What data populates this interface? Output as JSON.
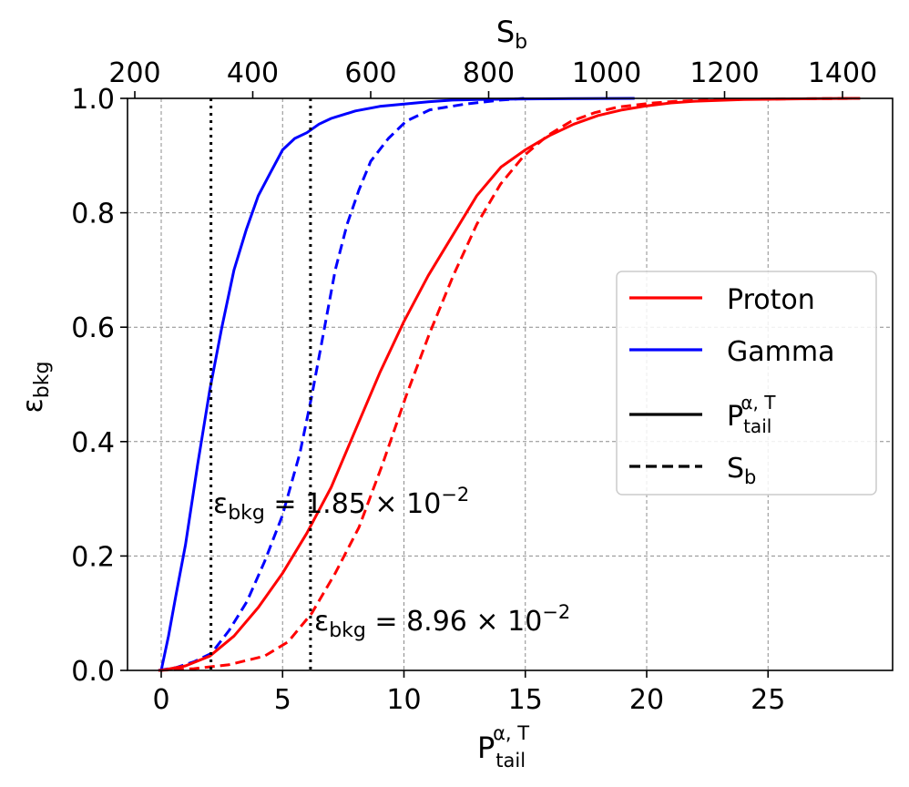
{
  "chart_data": {
    "type": "line",
    "ylabel": {
      "base": "ε",
      "sub": "bkg"
    },
    "xlabel": {
      "base": "P",
      "sub": "tail",
      "sup": "α, T"
    },
    "top_xlabel": {
      "base": "S",
      "sub": "b"
    },
    "xlim": [
      -1.5,
      30
    ],
    "ylim": [
      0.0,
      1.0
    ],
    "top_xlim": [
      200,
      1500
    ],
    "x_ticks": [
      "0",
      "5",
      "10",
      "15",
      "20",
      "25"
    ],
    "x_tick_values": [
      0,
      5,
      10,
      15,
      20,
      25
    ],
    "y_ticks": [
      "0.0",
      "0.2",
      "0.4",
      "0.6",
      "0.8",
      "1.0"
    ],
    "y_tick_values": [
      0.0,
      0.2,
      0.4,
      0.6,
      0.8,
      1.0
    ],
    "top_x_ticks": [
      "200",
      "400",
      "600",
      "800",
      "1000",
      "1200",
      "1400"
    ],
    "top_x_tick_values": [
      200,
      400,
      600,
      800,
      1000,
      1200,
      1400
    ],
    "grid": true,
    "legend_position": "center-right",
    "legend": [
      {
        "label": "Proton",
        "color": "#ff0000",
        "style": "solid"
      },
      {
        "label": "Gamma",
        "color": "#0000ff",
        "style": "solid"
      },
      {
        "label": "P",
        "sub": "tail",
        "sup": "α, T",
        "color": "#000000",
        "style": "solid"
      },
      {
        "label": "S",
        "sub": "b",
        "color": "#000000",
        "style": "dashed"
      }
    ],
    "series": [
      {
        "name": "Gamma P_tail",
        "axis": "bottom",
        "color": "#0000ff",
        "style": "solid",
        "x": [
          0,
          0.3,
          0.6,
          1.0,
          1.5,
          2.0,
          2.5,
          3.0,
          3.5,
          4.0,
          4.5,
          5.0,
          5.5,
          6.0,
          6.5,
          7.0,
          8.0,
          9.0,
          10.0,
          11.0,
          12.0,
          13.0,
          15.0,
          17.0,
          19.5
        ],
        "y": [
          0.0,
          0.06,
          0.13,
          0.22,
          0.36,
          0.49,
          0.6,
          0.7,
          0.77,
          0.83,
          0.87,
          0.91,
          0.93,
          0.94,
          0.955,
          0.965,
          0.978,
          0.986,
          0.99,
          0.994,
          0.997,
          0.998,
          0.999,
          0.9995,
          1.0
        ]
      },
      {
        "name": "Gamma S_b",
        "axis": "top",
        "color": "#0000ff",
        "style": "dashed",
        "x": [
          240,
          270,
          300,
          330,
          360,
          390,
          420,
          450,
          480,
          500,
          520,
          540,
          560,
          580,
          600,
          630,
          660,
          700,
          760,
          820,
          860
        ],
        "y": [
          0.0,
          0.005,
          0.015,
          0.03,
          0.07,
          0.12,
          0.19,
          0.27,
          0.38,
          0.48,
          0.59,
          0.7,
          0.78,
          0.84,
          0.89,
          0.93,
          0.96,
          0.98,
          0.99,
          0.997,
          1.0
        ]
      },
      {
        "name": "Proton P_tail",
        "axis": "bottom",
        "color": "#ff0000",
        "style": "solid",
        "x": [
          0,
          1.0,
          2.0,
          3.0,
          4.0,
          5.0,
          6.0,
          7.0,
          8.0,
          9.0,
          10.0,
          11.0,
          12.0,
          13.0,
          14.0,
          15.0,
          16.0,
          17.0,
          18.0,
          19.0,
          20.0,
          21.0,
          22.0,
          24.0,
          26.0,
          28.5
        ],
        "y": [
          0.0,
          0.008,
          0.025,
          0.06,
          0.11,
          0.17,
          0.24,
          0.32,
          0.42,
          0.52,
          0.61,
          0.69,
          0.76,
          0.83,
          0.88,
          0.91,
          0.935,
          0.955,
          0.97,
          0.98,
          0.987,
          0.992,
          0.995,
          0.998,
          0.999,
          1.0
        ]
      },
      {
        "name": "Proton S_b",
        "axis": "top",
        "color": "#ff0000",
        "style": "dashed",
        "x": [
          240,
          300,
          360,
          420,
          460,
          500,
          540,
          580,
          620,
          660,
          700,
          740,
          780,
          820,
          860,
          900,
          940,
          980,
          1020,
          1080,
          1120,
          1200,
          1300,
          1430
        ],
        "y": [
          0.0,
          0.003,
          0.01,
          0.025,
          0.05,
          0.1,
          0.17,
          0.25,
          0.36,
          0.48,
          0.59,
          0.69,
          0.78,
          0.85,
          0.9,
          0.935,
          0.96,
          0.975,
          0.985,
          0.992,
          0.995,
          0.998,
          0.999,
          1.0
        ]
      }
    ],
    "vlines": [
      {
        "x": 2.05,
        "style": "dotted",
        "color": "#000000"
      },
      {
        "x": 6.15,
        "style": "dotted",
        "color": "#000000"
      }
    ],
    "annotations": [
      {
        "base": "ε",
        "sub": "bkg",
        "rest": " = 1.85 × 10",
        "exp": "−2",
        "x": 2.05,
        "y": 0.27
      },
      {
        "base": "ε",
        "sub": "bkg",
        "rest": " = 8.96 × 10",
        "exp": "−2",
        "x": 6.25,
        "y": 0.07
      }
    ]
  }
}
